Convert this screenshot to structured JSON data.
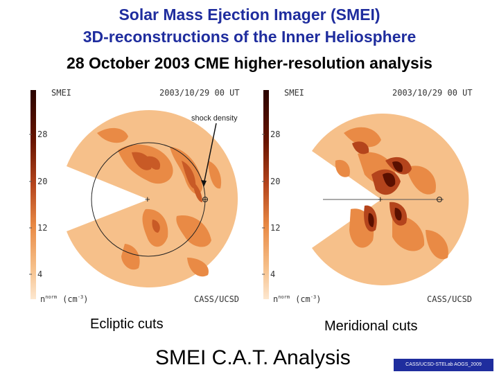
{
  "title": {
    "line1": "Solar Mass Ejection Imager (SMEI)",
    "line2": "3D-reconstructions of the Inner Heliosphere",
    "line3": "28 October 2003 CME higher-resolution analysis"
  },
  "panels": [
    {
      "instrument": "SMEI",
      "datetime": "2003/10/29 00 UT",
      "annotation": "shock density",
      "scale_ticks": [
        "28",
        "20",
        "12",
        "4"
      ],
      "units_base": "n",
      "units_sup": "norm",
      "units_tail": "(cm",
      "units_exp": "-3",
      "units_close": ")",
      "credit": "CASS/UCSD",
      "caption": "Ecliptic cuts"
    },
    {
      "instrument": "SMEI",
      "datetime": "2003/10/29 00 UT",
      "scale_ticks": [
        "28",
        "20",
        "12",
        "4"
      ],
      "units_base": "n",
      "units_sup": "norm",
      "units_tail": "(cm",
      "units_exp": "-3",
      "units_close": ")",
      "credit": "CASS/UCSD",
      "caption": "Meridional cuts"
    }
  ],
  "footer": "SMEI C.A.T. Analysis",
  "credit_badge": "CASS/UCSD-STELab AOGS_2009",
  "colors": {
    "title_blue": "#1f2d9e",
    "density_low": "#f6c08a",
    "density_mid": "#e98a45",
    "density_high": "#b4441c",
    "density_max": "#4a0c00"
  }
}
